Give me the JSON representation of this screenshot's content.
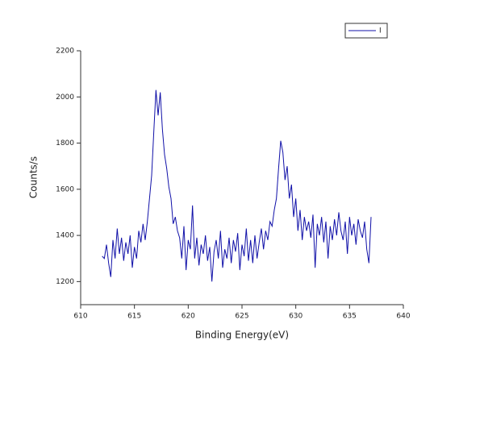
{
  "chart_data": {
    "type": "line",
    "x_label": "Binding Energy(eV)",
    "y_label": "Counts/s",
    "xlim": [
      610,
      640
    ],
    "xticks": [
      610,
      615,
      620,
      625,
      630,
      635,
      640
    ],
    "ylim": [
      1100,
      2200
    ],
    "yticks": [
      1200,
      1400,
      1600,
      1800,
      2000,
      2200
    ],
    "legend": "top-right",
    "x": [
      612.0,
      612.2,
      612.4,
      612.6,
      612.8,
      613.0,
      613.2,
      613.4,
      613.6,
      613.8,
      614.0,
      614.2,
      614.4,
      614.6,
      614.8,
      615.0,
      615.2,
      615.4,
      615.6,
      615.8,
      616.0,
      616.2,
      616.4,
      616.6,
      616.8,
      617.0,
      617.2,
      617.4,
      617.6,
      617.8,
      618.0,
      618.2,
      618.4,
      618.6,
      618.8,
      619.0,
      619.2,
      619.4,
      619.6,
      619.8,
      620.0,
      620.2,
      620.4,
      620.6,
      620.8,
      621.0,
      621.2,
      621.4,
      621.6,
      621.8,
      622.0,
      622.2,
      622.4,
      622.6,
      622.8,
      623.0,
      623.2,
      623.4,
      623.6,
      623.8,
      624.0,
      624.2,
      624.4,
      624.6,
      624.8,
      625.0,
      625.2,
      625.4,
      625.6,
      625.8,
      626.0,
      626.2,
      626.4,
      626.6,
      626.8,
      627.0,
      627.2,
      627.4,
      627.6,
      627.8,
      628.0,
      628.2,
      628.4,
      628.6,
      628.8,
      629.0,
      629.2,
      629.4,
      629.6,
      629.8,
      630.0,
      630.2,
      630.4,
      630.6,
      630.8,
      631.0,
      631.2,
      631.4,
      631.6,
      631.8,
      632.0,
      632.2,
      632.4,
      632.6,
      632.8,
      633.0,
      633.2,
      633.4,
      633.6,
      633.8,
      634.0,
      634.2,
      634.4,
      634.6,
      634.8,
      635.0,
      635.2,
      635.4,
      635.6,
      635.8,
      636.0,
      636.2,
      636.4,
      636.6,
      636.8,
      637.0
    ],
    "series": [
      {
        "name": "I",
        "color": "#1010a8",
        "values": [
          1310,
          1300,
          1360,
          1280,
          1220,
          1380,
          1300,
          1430,
          1320,
          1390,
          1290,
          1370,
          1320,
          1400,
          1260,
          1350,
          1300,
          1420,
          1370,
          1450,
          1380,
          1460,
          1560,
          1660,
          1850,
          2030,
          1920,
          2020,
          1860,
          1750,
          1690,
          1610,
          1560,
          1450,
          1480,
          1420,
          1390,
          1300,
          1440,
          1250,
          1380,
          1340,
          1530,
          1300,
          1390,
          1270,
          1360,
          1320,
          1400,
          1290,
          1350,
          1200,
          1330,
          1380,
          1300,
          1420,
          1260,
          1340,
          1300,
          1390,
          1280,
          1380,
          1330,
          1410,
          1250,
          1360,
          1310,
          1430,
          1290,
          1380,
          1280,
          1400,
          1300,
          1370,
          1430,
          1340,
          1420,
          1380,
          1460,
          1440,
          1510,
          1560,
          1690,
          1810,
          1760,
          1640,
          1700,
          1560,
          1620,
          1480,
          1560,
          1420,
          1510,
          1380,
          1480,
          1420,
          1460,
          1390,
          1490,
          1260,
          1450,
          1400,
          1480,
          1370,
          1460,
          1300,
          1440,
          1380,
          1470,
          1400,
          1500,
          1420,
          1380,
          1460,
          1320,
          1480,
          1400,
          1450,
          1360,
          1470,
          1420,
          1390,
          1460,
          1340,
          1280,
          1480
        ]
      }
    ]
  }
}
